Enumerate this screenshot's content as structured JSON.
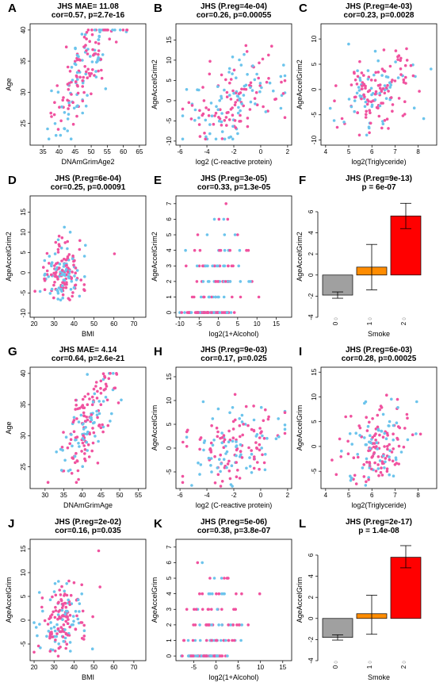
{
  "colors": {
    "pink": "#f0529f",
    "blue": "#6cc4ec",
    "bar0": "#a0a0a0",
    "bar1": "#ff8c00",
    "bar2": "#ff0000"
  },
  "chart_data": [
    {
      "panel": "A",
      "type": "scatter",
      "title": "JHS MAE= 11.08",
      "subtitle": "cor=0.57, p=2.7e-16",
      "xlabel": "DNAmGrimAge2",
      "ylabel": "Age",
      "xlim": [
        31,
        67
      ],
      "ylim": [
        21.5,
        41
      ],
      "xticks": [
        35,
        40,
        45,
        50,
        55,
        60,
        65
      ],
      "yticks": [
        25,
        30,
        35,
        40
      ],
      "gen": "age"
    },
    {
      "panel": "B",
      "type": "scatter",
      "title": "JHS (P.reg=4e-04)",
      "subtitle": "cor=0.26, p=0.00055",
      "xlabel": "log2 (C-reactive protein)",
      "ylabel": "AgeAccelGrim2",
      "xlim": [
        -6.3,
        2.3
      ],
      "ylim": [
        -11,
        19
      ],
      "xticks": [
        -6,
        -4,
        -2,
        0,
        2
      ],
      "yticks": [
        -10,
        -5,
        0,
        5,
        10,
        15
      ],
      "gen": "spread"
    },
    {
      "panel": "C",
      "type": "scatter",
      "title": "JHS (P.reg=4e-03)",
      "subtitle": "cor=0.23, p=0.0028",
      "xlabel": "log2(Triglyceride)",
      "ylabel": "AgeAccelGrim2",
      "xlim": [
        3.8,
        8.8
      ],
      "ylim": [
        -11,
        13
      ],
      "xticks": [
        4,
        5,
        6,
        7,
        8
      ],
      "yticks": [
        -10,
        -5,
        0,
        5,
        10
      ],
      "gen": "tri"
    },
    {
      "panel": "D",
      "type": "scatter",
      "title": "JHS (P.reg=6e-04)",
      "subtitle": "cor=0.25, p=0.00091",
      "xlabel": "BMI",
      "ylabel": "AgeAccelGrim2",
      "xlim": [
        18,
        76
      ],
      "ylim": [
        -11,
        19
      ],
      "xticks": [
        20,
        30,
        40,
        50,
        60,
        70
      ],
      "yticks": [
        -10,
        -5,
        0,
        5,
        10,
        15
      ],
      "gen": "bmi"
    },
    {
      "panel": "E",
      "type": "scatter",
      "title": "JHS (P.reg=3e-05)",
      "subtitle": "cor=0.33, p=1.3e-05",
      "xlabel": "log2(1+Alcohol)",
      "ylabel": "AgeAccelGrim2",
      "xlim": [
        -11,
        19
      ],
      "ylim": [
        -0.3,
        7.5
      ],
      "xticks": [
        -10,
        -5,
        0,
        5,
        10,
        15
      ],
      "yticks": [
        0,
        1,
        2,
        3,
        4,
        5,
        6,
        7
      ],
      "gen": "alc"
    },
    {
      "panel": "F",
      "type": "bar",
      "title": "JHS (P.reg=9e-13)",
      "subtitle": "p = 6e-07",
      "xlabel": "Smoke",
      "ylabel": "AgeAccelGrim2",
      "ylim": [
        -4,
        7.5
      ],
      "yticks": [
        -4,
        -2,
        0,
        2,
        4,
        6
      ],
      "categories": [
        "0",
        "1",
        "2"
      ],
      "values": [
        -1.9,
        0.75,
        5.6
      ],
      "err_low": [
        -2.2,
        -1.4,
        4.4
      ],
      "err_high": [
        -1.6,
        2.9,
        6.8
      ],
      "counts": [
        "0",
        "0",
        "0"
      ]
    },
    {
      "panel": "G",
      "type": "scatter",
      "title": "JHS MAE= 4.14",
      "subtitle": "cor=0.64, p=2.6e-21",
      "xlabel": "DNAmGrimAge",
      "ylabel": "Age",
      "xlim": [
        26,
        57
      ],
      "ylim": [
        21.5,
        41
      ],
      "xticks": [
        30,
        35,
        40,
        45,
        50,
        55
      ],
      "yticks": [
        25,
        30,
        35,
        40
      ],
      "gen": "age2"
    },
    {
      "panel": "H",
      "type": "scatter",
      "title": "JHS (P.reg=9e-03)",
      "subtitle": "cor=0.17, p=0.025",
      "xlabel": "log2 (C-reactive protein)",
      "ylabel": "AgeAccelGrim",
      "xlim": [
        -6.3,
        2.3
      ],
      "ylim": [
        -8.5,
        17
      ],
      "xticks": [
        -6,
        -4,
        -2,
        0,
        2
      ],
      "yticks": [
        -5,
        0,
        5,
        10,
        15
      ],
      "gen": "spread"
    },
    {
      "panel": "I",
      "type": "scatter",
      "title": "JHS (P.reg=6e-03)",
      "subtitle": "cor=0.28, p=0.00025",
      "xlabel": "log2(Triglyceride)",
      "ylabel": "AgeAccelGrim",
      "xlim": [
        3.8,
        8.8
      ],
      "ylim": [
        -8.5,
        16
      ],
      "xticks": [
        4,
        5,
        6,
        7,
        8
      ],
      "yticks": [
        -5,
        0,
        5,
        10,
        15
      ],
      "gen": "tri"
    },
    {
      "panel": "J",
      "type": "scatter",
      "title": "JHS (P.reg=2e-02)",
      "subtitle": "cor=0.16, p=0.035",
      "xlabel": "BMI",
      "ylabel": "AgeAccelGrim",
      "xlim": [
        18,
        76
      ],
      "ylim": [
        -8.5,
        17
      ],
      "xticks": [
        20,
        30,
        40,
        50,
        60,
        70
      ],
      "yticks": [
        -5,
        0,
        5,
        10,
        15
      ],
      "gen": "bmi"
    },
    {
      "panel": "K",
      "type": "scatter",
      "title": "JHS (P.reg=5e-06)",
      "subtitle": "cor=0.38, p=3.8e-07",
      "xlabel": "log2(1+Alcohol)",
      "ylabel": "AgeAccelGrim",
      "xlim": [
        -9,
        17
      ],
      "ylim": [
        -0.3,
        7.5
      ],
      "xticks": [
        -5,
        0,
        5,
        10,
        15
      ],
      "yticks": [
        0,
        1,
        2,
        3,
        4,
        5,
        6,
        7
      ],
      "gen": "alc"
    },
    {
      "panel": "L",
      "type": "bar",
      "title": "JHS (P.reg=2e-17)",
      "subtitle": "p = 1.4e-08",
      "xlabel": "Smoke",
      "ylabel": "AgeAccelGrim",
      "ylim": [
        -4,
        7.5
      ],
      "yticks": [
        -4,
        -2,
        0,
        2,
        4,
        6
      ],
      "categories": [
        "0",
        "1",
        "2"
      ],
      "values": [
        -1.8,
        0.45,
        5.8
      ],
      "err_low": [
        -2.05,
        -1.5,
        4.8
      ],
      "err_high": [
        -1.55,
        2.2,
        6.9
      ],
      "counts": [
        "0",
        "0",
        "0"
      ]
    }
  ]
}
